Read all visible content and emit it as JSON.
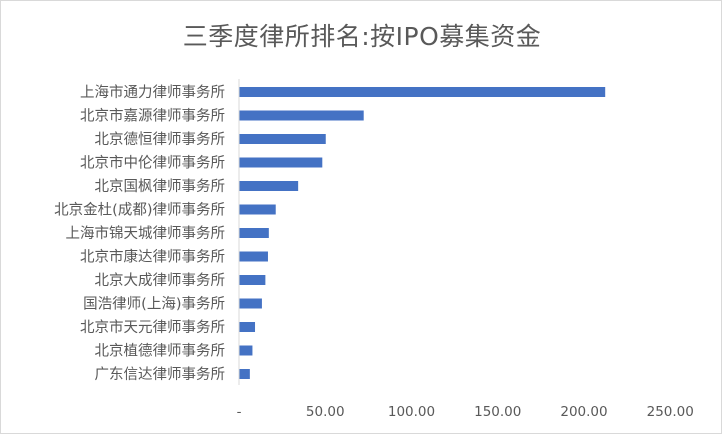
{
  "chart_data": {
    "type": "bar",
    "orientation": "horizontal",
    "title": "三季度律所排名:按IPO募集资金",
    "xlabel": "",
    "ylabel": "",
    "categories": [
      "上海市通力律师事务所",
      "北京市嘉源律师事务所",
      "北京德恒律师事务所",
      "北京市中伦律师事务所",
      "北京国枫律师事务所",
      "北京金杜(成都)律师事务所",
      "上海市锦天城律师事务所",
      "北京市康达律师事务所",
      "北京大成律师事务所",
      "国浩律师(上海)事务所",
      "北京市天元律师事务所",
      "北京植德律师事务所",
      "广东信达律师事务所"
    ],
    "values": [
      212,
      72,
      50,
      48,
      34,
      21,
      17,
      16.5,
      15,
      13,
      9,
      7.5,
      6
    ],
    "xlim": [
      0,
      250
    ],
    "xticks": [
      0,
      50,
      100,
      150,
      200,
      250
    ],
    "xtick_labels": [
      "-",
      "50.00",
      "100.00",
      "150.00",
      "200.00",
      "250.00"
    ],
    "grid": false,
    "legend": "none",
    "bar_color": "#4472C4",
    "axis_color": "#d9d9d9",
    "text_color": "#595959"
  }
}
